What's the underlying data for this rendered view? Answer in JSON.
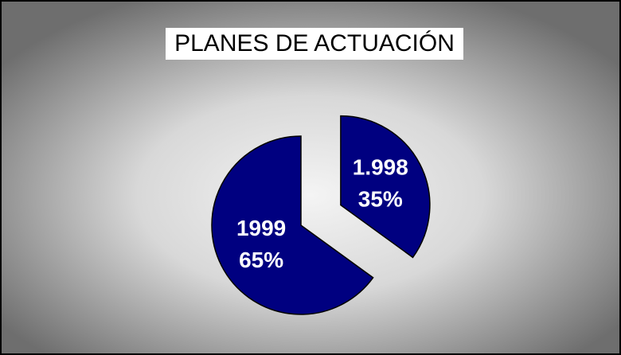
{
  "chart_data": {
    "type": "pie",
    "title": "PLANES DE ACTUACIÓN",
    "categories": [
      "1.998",
      "1999"
    ],
    "values": [
      35,
      65
    ],
    "value_labels": [
      "35%",
      "65%"
    ],
    "color": "#000080",
    "explode": [
      true,
      false
    ]
  }
}
